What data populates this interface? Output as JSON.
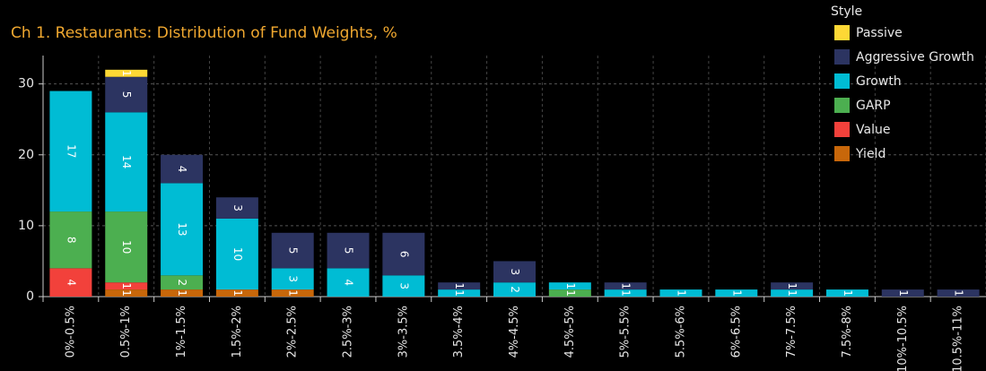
{
  "chart_data": {
    "type": "stacked_bar",
    "title": "Ch 1. Restaurants:  Distribution of Fund Weights, %",
    "legend_title": "Style",
    "legend": "top-right",
    "grid": true,
    "categories": [
      "0%-0.5%",
      "0.5%-1%",
      "1%-1.5%",
      "1.5%-2%",
      "2%-2.5%",
      "2.5%-3%",
      "3%-3.5%",
      "3.5%-4%",
      "4%-4.5%",
      "4.5%-5%",
      "5%-5.5%",
      "5.5%-6%",
      "6%-6.5%",
      "7%-7.5%",
      "7.5%-8%",
      "10%-10.5%",
      "10.5%-11%"
    ],
    "series": [
      {
        "name": "Yield",
        "color": "#c8670a",
        "values": [
          0,
          1,
          1,
          1,
          1,
          0,
          0,
          0,
          0,
          0,
          0,
          0,
          0,
          0,
          0,
          0,
          0
        ]
      },
      {
        "name": "Value",
        "color": "#f2413b",
        "values": [
          4,
          1,
          0,
          0,
          0,
          0,
          0,
          0,
          0,
          0,
          0,
          0,
          0,
          0,
          0,
          0,
          0
        ]
      },
      {
        "name": "GARP",
        "color": "#4caf50",
        "values": [
          8,
          10,
          2,
          0,
          0,
          0,
          0,
          0,
          0,
          1,
          0,
          0,
          0,
          0,
          0,
          0,
          0
        ]
      },
      {
        "name": "Growth",
        "color": "#00bcd4",
        "values": [
          17,
          14,
          13,
          10,
          3,
          4,
          3,
          1,
          2,
          1,
          1,
          1,
          1,
          1,
          1,
          0,
          0
        ]
      },
      {
        "name": "Aggressive Growth",
        "color": "#2c3461",
        "values": [
          0,
          5,
          4,
          3,
          5,
          5,
          6,
          1,
          3,
          0,
          1,
          0,
          0,
          1,
          0,
          1,
          1
        ]
      },
      {
        "name": "Passive",
        "color": "#fdd835",
        "values": [
          0,
          1,
          0,
          0,
          0,
          0,
          0,
          0,
          0,
          0,
          0,
          0,
          0,
          0,
          0,
          0,
          0
        ]
      }
    ],
    "ylim": [
      0,
      34
    ],
    "yticks": [
      0,
      10,
      20,
      30
    ]
  }
}
